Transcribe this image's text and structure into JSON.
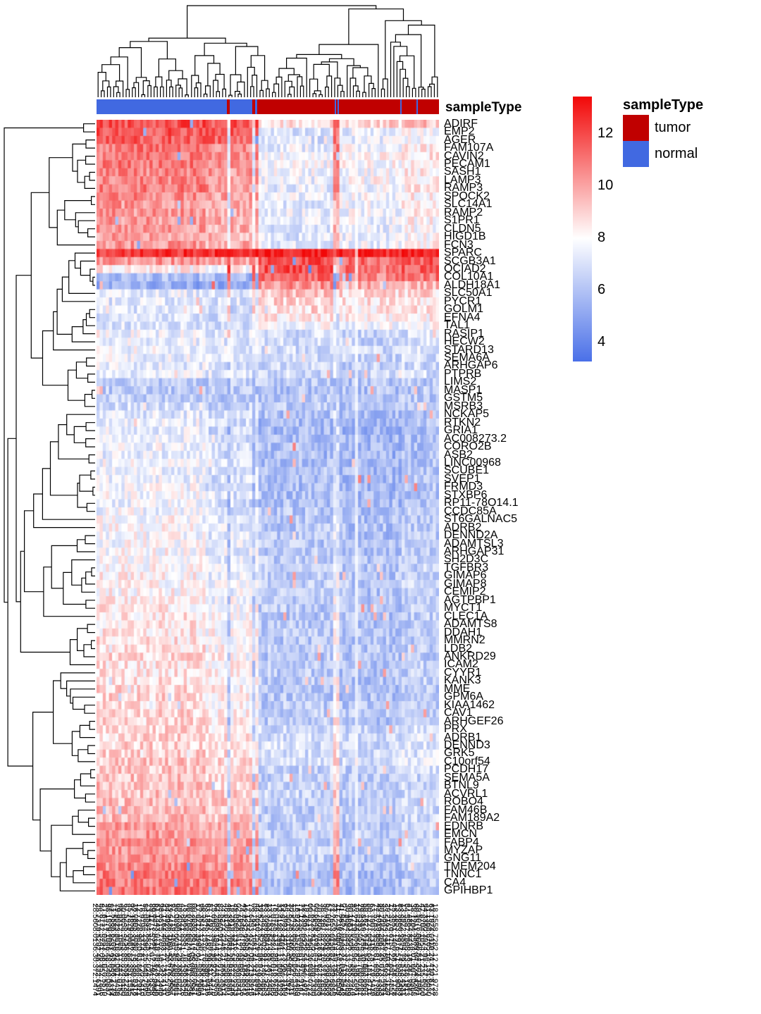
{
  "annotation": {
    "label": "sampleType",
    "segments": [
      {
        "type": "normal",
        "from": 0.0,
        "to": 0.381
      },
      {
        "type": "tumor",
        "from": 0.381,
        "to": 0.388
      },
      {
        "type": "normal",
        "from": 0.388,
        "to": 0.455
      },
      {
        "type": "tumor",
        "from": 0.455,
        "to": 0.462
      },
      {
        "type": "normal",
        "from": 0.462,
        "to": 0.469
      },
      {
        "type": "tumor",
        "from": 0.469,
        "to": 0.695
      },
      {
        "type": "normal",
        "from": 0.695,
        "to": 0.699
      },
      {
        "type": "tumor",
        "from": 0.699,
        "to": 0.703
      },
      {
        "type": "normal",
        "from": 0.703,
        "to": 0.707
      },
      {
        "type": "tumor",
        "from": 0.707,
        "to": 0.887
      },
      {
        "type": "normal",
        "from": 0.887,
        "to": 0.891
      },
      {
        "type": "tumor",
        "from": 0.891,
        "to": 0.934
      },
      {
        "type": "normal",
        "from": 0.934,
        "to": 0.938
      },
      {
        "type": "tumor",
        "from": 0.938,
        "to": 1.0
      }
    ],
    "colors": {
      "tumor": "#C00000",
      "normal": "#4169E1"
    }
  },
  "legend": {
    "title": "sampleType",
    "items": [
      {
        "label": "tumor",
        "color": "#C00000"
      },
      {
        "label": "normal",
        "color": "#4169E1"
      }
    ]
  },
  "colorbar": {
    "ticks": [
      12,
      10,
      8,
      6,
      4
    ],
    "top_value": 13.4,
    "bottom_value": 3.3,
    "high_color": "#F20808",
    "mid_color": "#FFFFFF",
    "low_color": "#4A70E8"
  },
  "chart_data": {
    "type": "heatmap",
    "title": "",
    "value_legend_ticks": [
      12,
      10,
      8,
      6,
      4
    ],
    "value_range_displayed": [
      3.3,
      13.4
    ],
    "colors": {
      "low": "#4A70E8",
      "mid": "#FFFFFF",
      "high": "#F20808"
    },
    "columns": {
      "count": 110,
      "annotation_track": "sampleType",
      "groups": [
        "normal",
        "tumor"
      ],
      "labels_legible": false,
      "label_note": "rotated sample identifiers, fully overlapping and illegible"
    },
    "row_value_columns": [
      "gene",
      "normal_left",
      "normal_right",
      "tumor_zone1",
      "tumor_zone2",
      "tumor_zone3"
    ],
    "rows": [
      [
        "ADIRF",
        11.9,
        11.6,
        8.6,
        8.9,
        9.4
      ],
      [
        "EMP2",
        11.7,
        11.4,
        7.1,
        7.4,
        7.8
      ],
      [
        "AGER",
        11.6,
        11.2,
        7.0,
        7.3,
        7.7
      ],
      [
        "FAM107A",
        11.0,
        10.6,
        7.5,
        7.8,
        8.4
      ],
      [
        "CAVIN2",
        10.8,
        10.4,
        7.7,
        8.0,
        8.5
      ],
      [
        "PECAM1",
        10.9,
        10.5,
        7.8,
        8.0,
        8.6
      ],
      [
        "SASH1",
        10.6,
        10.2,
        7.6,
        7.9,
        8.3
      ],
      [
        "LAMP3",
        10.7,
        10.3,
        7.5,
        7.8,
        8.4
      ],
      [
        "RAMP3",
        10.8,
        10.3,
        7.4,
        7.7,
        8.3
      ],
      [
        "SPOCK2",
        10.6,
        10.1,
        7.5,
        7.8,
        8.3
      ],
      [
        "SLC14A1",
        10.2,
        9.8,
        7.3,
        7.6,
        8.1
      ],
      [
        "RAMP2",
        10.3,
        9.9,
        7.4,
        7.7,
        8.2
      ],
      [
        "S1PR1",
        10.2,
        9.8,
        7.3,
        7.6,
        8.1
      ],
      [
        "CLDN5",
        10.1,
        9.7,
        7.2,
        7.5,
        8.0
      ],
      [
        "HIGD1B",
        10.0,
        9.6,
        7.2,
        7.5,
        8.0
      ],
      [
        "FCN3",
        10.3,
        9.8,
        7.3,
        7.6,
        8.1
      ],
      [
        "SPARC",
        12.4,
        12.5,
        13.1,
        12.8,
        13.0
      ],
      [
        "SCGB3A1",
        10.3,
        10.0,
        11.8,
        11.2,
        11.6
      ],
      [
        "OCIAD2",
        8.3,
        8.1,
        11.8,
        11.0,
        11.4
      ],
      [
        "COL10A1",
        5.8,
        5.6,
        11.4,
        10.7,
        11.0
      ],
      [
        "ALDH18A1",
        5.3,
        5.1,
        10.4,
        9.8,
        9.6
      ],
      [
        "SLC50A1",
        7.4,
        7.2,
        9.2,
        8.8,
        8.8
      ],
      [
        "PYCR1",
        7.2,
        7.0,
        9.0,
        8.6,
        8.6
      ],
      [
        "GOLM1",
        7.0,
        6.9,
        8.8,
        8.4,
        8.5
      ],
      [
        "EFNA4",
        7.2,
        7.0,
        8.5,
        8.2,
        8.3
      ],
      [
        "TAL1",
        7.1,
        6.9,
        7.9,
        7.7,
        7.9
      ],
      [
        "RASIP1",
        7.6,
        7.3,
        6.9,
        6.7,
        7.0
      ],
      [
        "HECW2",
        7.5,
        7.2,
        6.8,
        6.6,
        6.9
      ],
      [
        "STARD13",
        7.6,
        7.2,
        6.9,
        6.7,
        7.0
      ],
      [
        "SEMA6A",
        7.5,
        7.1,
        6.8,
        6.6,
        6.9
      ],
      [
        "ARHGAP6",
        7.4,
        7.1,
        6.7,
        6.5,
        6.8
      ],
      [
        "PTPRB",
        7.5,
        7.2,
        6.8,
        6.6,
        6.9
      ],
      [
        "LIMS2",
        6.4,
        6.3,
        6.2,
        6.1,
        6.3
      ],
      [
        "MASP1",
        6.3,
        6.2,
        6.1,
        6.0,
        6.2
      ],
      [
        "GSTM5",
        6.5,
        6.3,
        6.2,
        6.1,
        6.3
      ],
      [
        "MSRB3",
        6.9,
        6.6,
        6.3,
        6.2,
        6.4
      ],
      [
        "NCKAP5",
        7.2,
        6.8,
        6.0,
        5.8,
        6.2
      ],
      [
        "RTKN2",
        7.5,
        6.9,
        5.8,
        5.6,
        6.0
      ],
      [
        "GRIA1",
        7.4,
        6.8,
        5.7,
        5.5,
        5.9
      ],
      [
        "AC008273.2",
        7.5,
        6.9,
        5.8,
        5.6,
        6.0
      ],
      [
        "CORO2B",
        7.6,
        7.0,
        5.9,
        5.7,
        6.1
      ],
      [
        "ASB2",
        7.5,
        6.9,
        5.8,
        5.6,
        6.0
      ],
      [
        "LINC00968",
        7.7,
        7.0,
        5.9,
        5.7,
        6.1
      ],
      [
        "SCUBE1",
        7.6,
        7.0,
        6.0,
        5.8,
        6.2
      ],
      [
        "SVEP1",
        7.6,
        7.0,
        6.0,
        5.8,
        6.2
      ],
      [
        "FRMD3",
        7.7,
        7.1,
        5.9,
        5.7,
        6.1
      ],
      [
        "STXBP6",
        7.7,
        7.1,
        5.9,
        5.7,
        6.1
      ],
      [
        "RP11-78O14.1",
        7.6,
        7.0,
        6.0,
        5.8,
        6.2
      ],
      [
        "CCDC85A",
        7.7,
        7.1,
        6.1,
        5.9,
        6.3
      ],
      [
        "ST6GALNAC5",
        7.8,
        7.2,
        6.1,
        5.9,
        6.3
      ],
      [
        "ADRB2",
        7.9,
        7.3,
        6.2,
        6.0,
        6.4
      ],
      [
        "DENND2A",
        7.8,
        7.2,
        6.1,
        5.9,
        6.3
      ],
      [
        "ADAMTSL3",
        7.9,
        7.3,
        6.2,
        6.0,
        6.4
      ],
      [
        "ARHGAP31",
        8.0,
        7.4,
        6.3,
        6.1,
        6.5
      ],
      [
        "SH2D3C",
        7.9,
        7.4,
        6.3,
        6.1,
        6.5
      ],
      [
        "TGFBR3",
        8.1,
        7.5,
        6.4,
        6.2,
        6.6
      ],
      [
        "GIMAP6",
        8.2,
        7.6,
        6.4,
        6.2,
        6.6
      ],
      [
        "GIMAP8",
        8.2,
        7.6,
        6.4,
        6.2,
        6.6
      ],
      [
        "CEMIP2",
        8.1,
        7.6,
        6.3,
        6.1,
        6.5
      ],
      [
        "AGTPBP1",
        8.2,
        7.7,
        6.4,
        6.2,
        6.6
      ],
      [
        "MYCT1",
        8.4,
        7.9,
        6.3,
        6.1,
        6.5
      ],
      [
        "CLEC1A",
        8.5,
        8.0,
        6.2,
        6.0,
        6.4
      ],
      [
        "ADAMTS8",
        8.6,
        8.0,
        6.2,
        6.0,
        6.4
      ],
      [
        "DDAH1",
        8.5,
        8.0,
        6.3,
        6.1,
        6.5
      ],
      [
        "MMRN2",
        8.6,
        8.1,
        6.2,
        6.0,
        6.4
      ],
      [
        "LDB2",
        8.7,
        8.1,
        6.3,
        6.1,
        6.5
      ],
      [
        "ANKRD29",
        8.8,
        8.2,
        6.2,
        6.0,
        6.4
      ],
      [
        "ICAM2",
        8.6,
        8.1,
        6.3,
        6.1,
        6.5
      ],
      [
        "CYYR1",
        8.6,
        8.1,
        6.3,
        6.1,
        6.5
      ],
      [
        "KANK3",
        8.7,
        8.2,
        6.2,
        6.0,
        6.4
      ],
      [
        "MME",
        8.8,
        8.3,
        6.1,
        5.9,
        6.3
      ],
      [
        "GPM6A",
        8.9,
        8.4,
        6.2,
        6.0,
        6.4
      ],
      [
        "KIAA1462",
        8.8,
        8.3,
        6.3,
        6.1,
        6.5
      ],
      [
        "CAV1",
        8.9,
        8.4,
        6.4,
        6.2,
        6.6
      ],
      [
        "ARHGEF26",
        8.8,
        8.4,
        6.3,
        6.1,
        6.5
      ],
      [
        "PRX",
        9.0,
        8.5,
        6.8,
        6.6,
        7.0
      ],
      [
        "ADRB1",
        8.9,
        8.5,
        6.9,
        6.7,
        7.1
      ],
      [
        "DENND3",
        9.0,
        8.6,
        7.0,
        6.8,
        7.2
      ],
      [
        "GRK5",
        9.1,
        8.7,
        6.9,
        6.7,
        7.1
      ],
      [
        "C10orf54",
        9.2,
        8.8,
        7.0,
        6.8,
        7.2
      ],
      [
        "PCDH17",
        9.2,
        8.8,
        6.6,
        6.4,
        6.8
      ],
      [
        "SEMA5A",
        9.3,
        8.9,
        6.5,
        6.3,
        6.7
      ],
      [
        "BTNL9",
        9.4,
        9.0,
        6.5,
        6.3,
        6.7
      ],
      [
        "ACVRL1",
        9.3,
        9.0,
        6.6,
        6.4,
        6.8
      ],
      [
        "ROBO4",
        9.4,
        9.1,
        6.5,
        6.3,
        6.7
      ],
      [
        "FAM46B",
        9.5,
        9.1,
        6.4,
        6.2,
        6.6
      ],
      [
        "FAM189A2",
        9.6,
        9.2,
        6.5,
        6.3,
        6.7
      ],
      [
        "EDNRB",
        10.1,
        9.8,
        6.4,
        6.2,
        6.6
      ],
      [
        "EMCN",
        10.2,
        9.9,
        6.5,
        6.3,
        6.7
      ],
      [
        "FABP4",
        10.3,
        10.0,
        6.4,
        6.2,
        6.6
      ],
      [
        "MYZAP",
        10.2,
        9.9,
        6.5,
        6.3,
        6.7
      ],
      [
        "GNG11",
        10.4,
        10.1,
        6.4,
        6.2,
        6.6
      ],
      [
        "TMEM204",
        10.5,
        10.2,
        6.3,
        6.1,
        6.5
      ],
      [
        "TNNC1",
        10.8,
        10.5,
        6.1,
        5.9,
        6.3
      ],
      [
        "CA4",
        10.9,
        10.6,
        6.0,
        5.8,
        6.2
      ],
      [
        "GPIHBP1",
        11.0,
        10.7,
        6.0,
        5.8,
        6.2
      ]
    ]
  }
}
